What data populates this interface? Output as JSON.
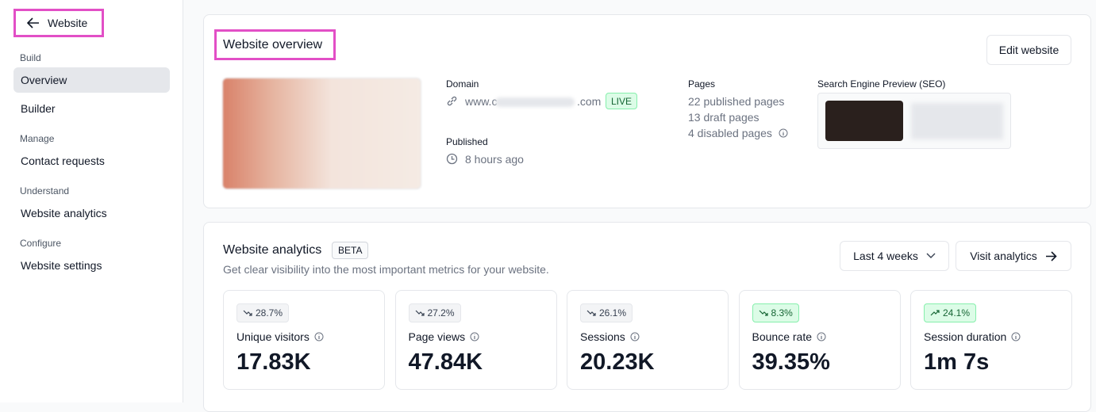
{
  "sidebar": {
    "back": "Website",
    "sections": [
      {
        "title": "Build",
        "items": [
          "Overview",
          "Builder"
        ]
      },
      {
        "title": "Manage",
        "items": [
          "Contact requests"
        ]
      },
      {
        "title": "Understand",
        "items": [
          "Website analytics"
        ]
      },
      {
        "title": "Configure",
        "items": [
          "Website settings"
        ]
      }
    ]
  },
  "overview": {
    "title": "Website overview",
    "edit": "Edit website",
    "domain_label": "Domain",
    "domain_start": "www.c",
    "domain_end": ".com",
    "live": "LIVE",
    "published_label": "Published",
    "published": "8 hours ago",
    "pages_label": "Pages",
    "pages": [
      "22 published pages",
      "13 draft pages",
      "4 disabled pages"
    ],
    "seo_label": "Search Engine Preview (SEO)"
  },
  "analytics": {
    "title": "Website analytics",
    "badge": "BETA",
    "subtitle": "Get clear visibility into the most important metrics for your website.",
    "range": "Last 4 weeks",
    "visit": "Visit analytics",
    "metrics": [
      {
        "change": "28.7%",
        "trend": "down",
        "label": "Unique visitors",
        "value": "17.83K"
      },
      {
        "change": "27.2%",
        "trend": "down",
        "label": "Page views",
        "value": "47.84K"
      },
      {
        "change": "26.1%",
        "trend": "down",
        "label": "Sessions",
        "value": "20.23K"
      },
      {
        "change": "8.3%",
        "trend": "down-good",
        "label": "Bounce rate",
        "value": "39.35%"
      },
      {
        "change": "24.1%",
        "trend": "up",
        "label": "Session duration",
        "value": "1m 7s"
      }
    ]
  }
}
